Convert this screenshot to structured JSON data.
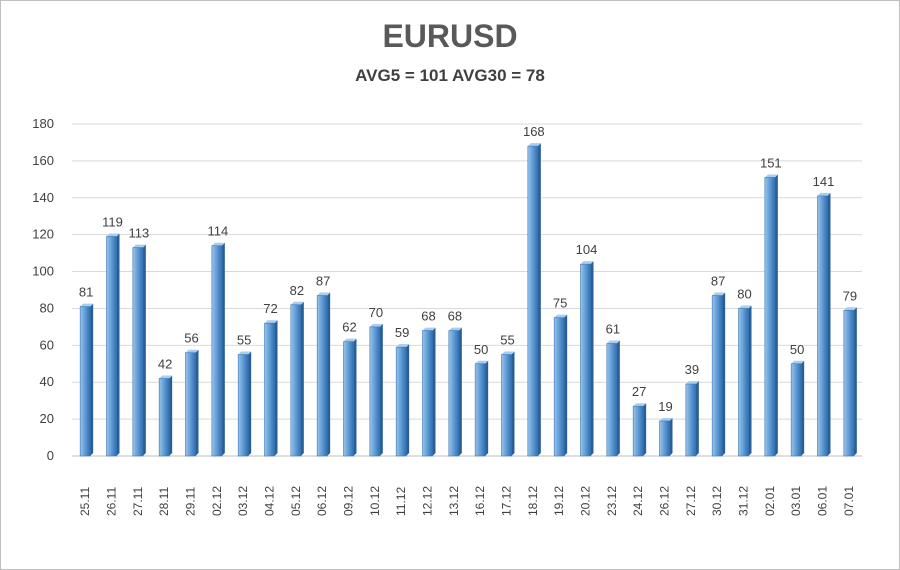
{
  "chart_data": {
    "type": "bar",
    "title": "EURUSD",
    "subtitle": "AVG5 = 101 AVG30 = 78",
    "xlabel": "",
    "ylabel": "",
    "ylim": [
      0,
      180
    ],
    "yticks": [
      0,
      20,
      40,
      60,
      80,
      100,
      120,
      140,
      160,
      180
    ],
    "grid": true,
    "categories": [
      "25.11",
      "26.11",
      "27.11",
      "28.11",
      "29.11",
      "02.12",
      "03.12",
      "04.12",
      "05.12",
      "06.12",
      "09.12",
      "10.12",
      "11.12",
      "12.12",
      "13.12",
      "16.12",
      "17.12",
      "18.12",
      "19.12",
      "20.12",
      "23.12",
      "24.12",
      "26.12",
      "27.12",
      "30.12",
      "31.12",
      "02.01",
      "03.01",
      "06.01",
      "07.01"
    ],
    "values": [
      81,
      119,
      113,
      42,
      56,
      114,
      55,
      72,
      82,
      87,
      62,
      70,
      59,
      68,
      68,
      50,
      55,
      168,
      75,
      104,
      61,
      27,
      19,
      39,
      87,
      80,
      151,
      50,
      141,
      79
    ],
    "bar_color": "#5B9BD5"
  }
}
